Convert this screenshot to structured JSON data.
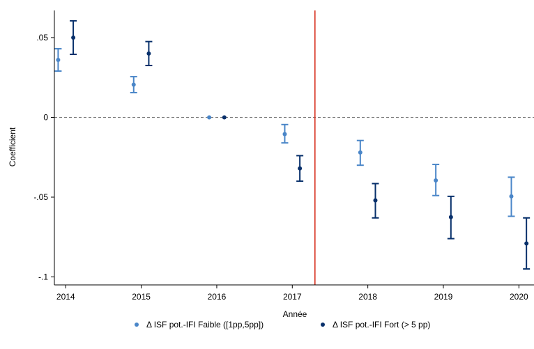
{
  "chart_data": {
    "type": "scatter",
    "title": "",
    "xlabel": "Année",
    "ylabel": "Coefficient",
    "x_ticks": [
      2014,
      2015,
      2016,
      2017,
      2018,
      2019,
      2020
    ],
    "x_tick_labels": [
      "2014",
      "2015",
      "2016",
      "2017",
      "2018",
      "2019",
      "2020"
    ],
    "y_ticks": [
      0.05,
      0,
      -0.05,
      -0.1
    ],
    "y_tick_labels": [
      ".05",
      "0",
      "-.05",
      "-.1"
    ],
    "xlim": [
      2013.85,
      2020.2
    ],
    "ylim": [
      -0.105,
      0.067
    ],
    "grid": false,
    "reference_line_y": 0,
    "event_line_x": 2017.3,
    "event_line_color": "#d7301f",
    "legend_position": "bottom",
    "series": [
      {
        "name": "Δ ISF pot.-IFI Faible ([1pp,5pp])",
        "color": "#4a86c8",
        "points": [
          {
            "x": 2013.9,
            "y": 0.036,
            "lo": 0.029,
            "hi": 0.043
          },
          {
            "x": 2014.9,
            "y": 0.0205,
            "lo": 0.0155,
            "hi": 0.0255
          },
          {
            "x": 2015.9,
            "y": 0.0,
            "lo": 0.0,
            "hi": 0.0
          },
          {
            "x": 2016.9,
            "y": -0.0105,
            "lo": -0.016,
            "hi": -0.0045
          },
          {
            "x": 2017.9,
            "y": -0.022,
            "lo": -0.03,
            "hi": -0.0145
          },
          {
            "x": 2018.9,
            "y": -0.0395,
            "lo": -0.049,
            "hi": -0.0295
          },
          {
            "x": 2019.9,
            "y": -0.0495,
            "lo": -0.062,
            "hi": -0.0375
          }
        ]
      },
      {
        "name": "Δ ISF pot.-IFI Fort (> 5 pp)",
        "color": "#08306b",
        "points": [
          {
            "x": 2014.1,
            "y": 0.05,
            "lo": 0.0395,
            "hi": 0.0605
          },
          {
            "x": 2015.1,
            "y": 0.04,
            "lo": 0.0325,
            "hi": 0.0475
          },
          {
            "x": 2016.1,
            "y": 0.0,
            "lo": 0.0,
            "hi": 0.0
          },
          {
            "x": 2017.1,
            "y": -0.032,
            "lo": -0.04,
            "hi": -0.024
          },
          {
            "x": 2018.1,
            "y": -0.052,
            "lo": -0.063,
            "hi": -0.0415
          },
          {
            "x": 2019.1,
            "y": -0.0625,
            "lo": -0.076,
            "hi": -0.0495
          },
          {
            "x": 2020.1,
            "y": -0.079,
            "lo": -0.095,
            "hi": -0.063
          }
        ]
      }
    ]
  }
}
